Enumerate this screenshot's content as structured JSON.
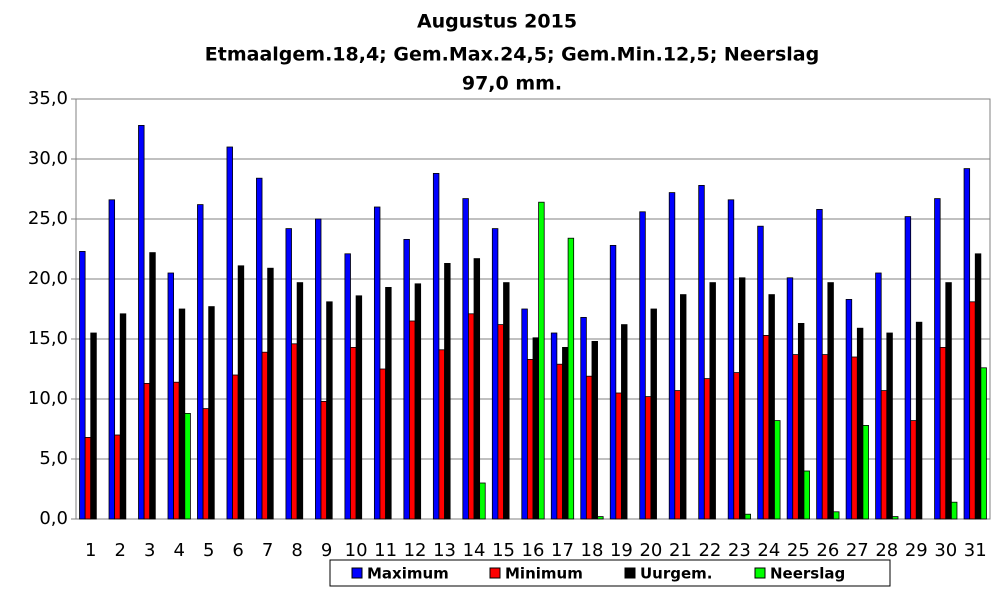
{
  "chart_data": {
    "type": "bar",
    "title": "Augustus 2015",
    "subtitle": [
      "Etmaalgem.18,4; Gem.Max.24,5;  Gem.Min.12,5; Neerslag",
      "97,0 mm."
    ],
    "categories": [
      "1",
      "2",
      "3",
      "4",
      "5",
      "6",
      "7",
      "8",
      "9",
      "10",
      "11",
      "12",
      "13",
      "14",
      "15",
      "16",
      "17",
      "18",
      "19",
      "20",
      "21",
      "22",
      "23",
      "24",
      "25",
      "26",
      "27",
      "28",
      "29",
      "30",
      "31"
    ],
    "series": [
      {
        "name": "Maximum",
        "color": "#0000ff",
        "values": [
          22.3,
          26.6,
          32.8,
          20.5,
          26.2,
          31.0,
          28.4,
          24.2,
          25.0,
          22.1,
          26.0,
          23.3,
          28.8,
          26.7,
          24.2,
          17.5,
          15.5,
          16.8,
          22.8,
          25.6,
          27.2,
          27.8,
          26.6,
          24.4,
          20.1,
          25.8,
          18.3,
          20.5,
          25.2,
          26.7,
          29.2
        ]
      },
      {
        "name": "Minimum",
        "color": "#ff0000",
        "values": [
          6.8,
          7.0,
          11.3,
          11.4,
          9.2,
          12.0,
          13.9,
          14.6,
          9.8,
          14.3,
          12.5,
          16.5,
          14.1,
          17.1,
          16.2,
          13.3,
          12.9,
          11.9,
          10.5,
          10.2,
          10.7,
          11.7,
          12.2,
          15.3,
          13.7,
          13.7,
          13.5,
          10.7,
          8.2,
          14.3,
          18.1
        ]
      },
      {
        "name": "Uurgem.",
        "color": "#000000",
        "values": [
          15.5,
          17.1,
          22.2,
          17.5,
          17.7,
          21.1,
          20.9,
          19.7,
          18.1,
          18.6,
          19.3,
          19.6,
          21.3,
          21.7,
          19.7,
          15.1,
          14.3,
          14.8,
          16.2,
          17.5,
          18.7,
          19.7,
          20.1,
          18.7,
          16.3,
          19.7,
          15.9,
          15.5,
          16.4,
          19.7,
          22.1
        ]
      },
      {
        "name": "Neerslag",
        "color": "#00ff00",
        "values": [
          0,
          0,
          0,
          8.8,
          0,
          0,
          0,
          0,
          0,
          0,
          0,
          0,
          0,
          3.0,
          0,
          26.4,
          23.4,
          0.2,
          0,
          0,
          0,
          0,
          0.4,
          8.2,
          4.0,
          0.6,
          7.8,
          0.2,
          0,
          1.4,
          12.6
        ]
      }
    ],
    "ylim": [
      0,
      35
    ],
    "yticks": [
      {
        "value": 0,
        "label": "0,0"
      },
      {
        "value": 5,
        "label": "5,0"
      },
      {
        "value": 10,
        "label": "10,0"
      },
      {
        "value": 15,
        "label": "15,0"
      },
      {
        "value": 20,
        "label": "20,0"
      },
      {
        "value": 25,
        "label": "25,0"
      },
      {
        "value": 30,
        "label": "30,0"
      },
      {
        "value": 35,
        "label": "35,0"
      }
    ],
    "grid": true,
    "legend": "bottom"
  }
}
